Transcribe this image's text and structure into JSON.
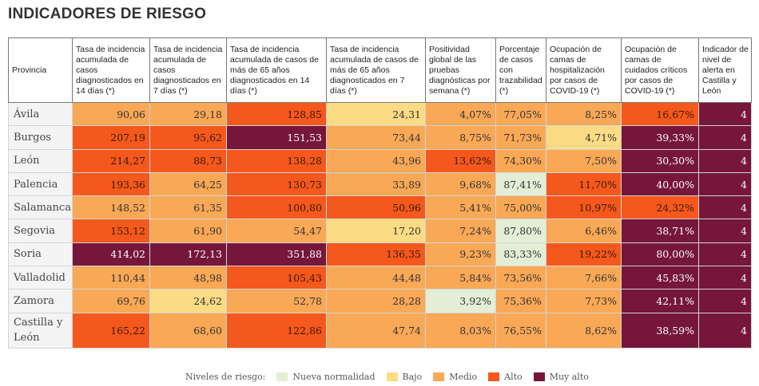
{
  "title": "INDICADORES DE RIESGO",
  "colors": {
    "nueva": "#e3eed7",
    "bajo": "#fbdc85",
    "medio": "#f9a856",
    "alto": "#f4581d",
    "muy_alto": "#75163a"
  },
  "headers": [
    "Provincia",
    "Tasa de incidencia acumulada de casos diagnosticados en 14 días (*)",
    "Tasa de incidencia acumulada de casos diagnosticados en 7 días (*)",
    "Tasa de incidencia acumulada de casos de más de 65 años diagnosticados en 14 días (*)",
    "Tasa de incidencia acumulada de casos de más de 65 años diagnosticados en 7 días (*)",
    "Positividad global de las pruebas diagnósticas por semana (*)",
    "Porcentaje de casos con trazabilidad (*)",
    "Ocupación de camas de hospitalización por casos de COVID-19 (*)",
    "Ocupación de camas de cuidados críticos por casos de COVID-19 (*)",
    "Indicador de nivel de alerta en Castilla y León"
  ],
  "rows": [
    {
      "provincia": "Ávila",
      "values": [
        "90,06",
        "29,18",
        "128,85",
        "24,31",
        "4,07%",
        "77,05%",
        "8,25%",
        "16,67%",
        "4"
      ]
    },
    {
      "provincia": "Burgos",
      "values": [
        "207,19",
        "95,62",
        "151,53",
        "73,44",
        "8,75%",
        "71,73%",
        "4,71%",
        "39,33%",
        "4"
      ]
    },
    {
      "provincia": "León",
      "values": [
        "214,27",
        "88,73",
        "138,28",
        "43,96",
        "13,62%",
        "74,30%",
        "7,50%",
        "30,30%",
        "4"
      ]
    },
    {
      "provincia": "Palencia",
      "values": [
        "193,36",
        "64,25",
        "130,73",
        "33,89",
        "9,68%",
        "87,41%",
        "11,70%",
        "40,00%",
        "4"
      ]
    },
    {
      "provincia": "Salamanca",
      "values": [
        "148,52",
        "61,35",
        "100,80",
        "50,96",
        "5,41%",
        "75,00%",
        "10,97%",
        "24,32%",
        "4"
      ]
    },
    {
      "provincia": "Segovia",
      "values": [
        "153,12",
        "61,90",
        "54,47",
        "17,20",
        "7,24%",
        "87,80%",
        "6,46%",
        "38,71%",
        "4"
      ]
    },
    {
      "provincia": "Soria",
      "values": [
        "414,02",
        "172,13",
        "351,88",
        "136,35",
        "9,23%",
        "83,33%",
        "19,22%",
        "80,00%",
        "4"
      ]
    },
    {
      "provincia": "Valladolid",
      "values": [
        "110,44",
        "48,98",
        "105,43",
        "44,48",
        "5,84%",
        "73,56%",
        "7,66%",
        "45,83%",
        "4"
      ]
    },
    {
      "provincia": "Zamora",
      "values": [
        "69,76",
        "24,62",
        "52,78",
        "28,28",
        "3,92%",
        "75,36%",
        "7,73%",
        "42,11%",
        "4"
      ]
    },
    {
      "provincia": "Castilla y León",
      "values": [
        "165,22",
        "68,60",
        "122,86",
        "47,74",
        "8,03%",
        "76,55%",
        "8,62%",
        "38,59%",
        "4"
      ]
    }
  ],
  "levels": [
    [
      "m",
      "m",
      "a",
      "b",
      "m",
      "m",
      "m",
      "a",
      "ma"
    ],
    [
      "a",
      "a",
      "ma",
      "m",
      "m",
      "m",
      "b",
      "ma",
      "ma"
    ],
    [
      "a",
      "a",
      "a",
      "m",
      "a",
      "m",
      "m",
      "ma",
      "ma"
    ],
    [
      "a",
      "m",
      "a",
      "m",
      "m",
      "n",
      "a",
      "ma",
      "ma"
    ],
    [
      "m",
      "m",
      "a",
      "a",
      "m",
      "m",
      "a",
      "a",
      "ma"
    ],
    [
      "a",
      "m",
      "m",
      "b",
      "m",
      "n",
      "m",
      "ma",
      "ma"
    ],
    [
      "ma",
      "ma",
      "ma",
      "a",
      "m",
      "n",
      "a",
      "ma",
      "ma"
    ],
    [
      "m",
      "m",
      "a",
      "m",
      "m",
      "m",
      "m",
      "ma",
      "ma"
    ],
    [
      "m",
      "b",
      "m",
      "m",
      "n",
      "m",
      "m",
      "ma",
      "ma"
    ],
    [
      "a",
      "m",
      "a",
      "m",
      "m",
      "m",
      "m",
      "ma",
      "ma"
    ]
  ],
  "legend": {
    "label": "Niveles de riesgo:",
    "items": [
      {
        "key": "n",
        "label": "Nueva normalidad"
      },
      {
        "key": "b",
        "label": "Bajo"
      },
      {
        "key": "m",
        "label": "Medio"
      },
      {
        "key": "a",
        "label": "Alto"
      },
      {
        "key": "ma",
        "label": "Muy alto"
      }
    ]
  }
}
